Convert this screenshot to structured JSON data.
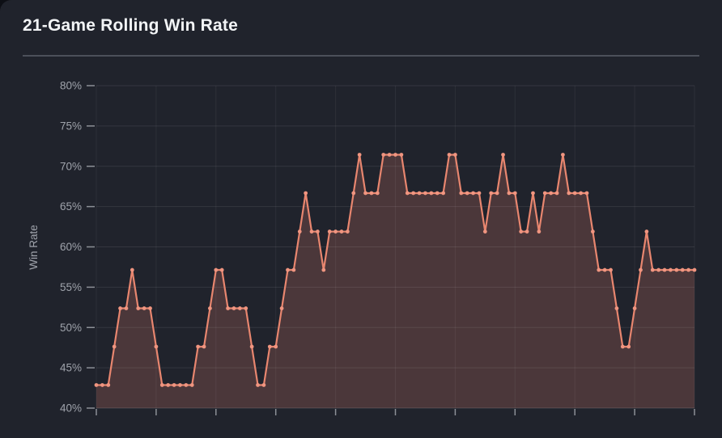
{
  "page": {
    "title": "21-Game Rolling Win Rate"
  },
  "chart_data": {
    "type": "line",
    "title": "21-Game Rolling Win Rate",
    "xlabel": "",
    "ylabel": "Win Rate",
    "ylim": [
      40,
      80
    ],
    "y_tick_labels": [
      "80%",
      "75%",
      "70%",
      "65%",
      "60%",
      "55%",
      "50%",
      "45%",
      "40%"
    ],
    "y_tick_step_percent": 5,
    "x_tick_labels_visible": false,
    "x_gridline_count": 11,
    "grid": true,
    "legend_position": "none",
    "unit": "percent",
    "series": [
      {
        "name": "21-Game Rolling Win Rate",
        "marker": "circle",
        "values": [
          42.86,
          42.86,
          42.86,
          47.62,
          52.38,
          52.38,
          57.14,
          52.38,
          52.38,
          52.38,
          47.62,
          42.86,
          42.86,
          42.86,
          42.86,
          42.86,
          42.86,
          47.62,
          47.62,
          52.38,
          57.14,
          57.14,
          52.38,
          52.38,
          52.38,
          52.38,
          47.62,
          42.86,
          42.86,
          47.62,
          47.62,
          52.38,
          57.14,
          57.14,
          61.9,
          66.67,
          61.9,
          61.9,
          57.14,
          61.9,
          61.9,
          61.9,
          61.9,
          66.67,
          71.43,
          66.67,
          66.67,
          66.67,
          71.43,
          71.43,
          71.43,
          71.43,
          66.67,
          66.67,
          66.67,
          66.67,
          66.67,
          66.67,
          66.67,
          71.43,
          71.43,
          66.67,
          66.67,
          66.67,
          66.67,
          61.9,
          66.67,
          66.67,
          71.43,
          66.67,
          66.67,
          61.9,
          61.9,
          66.67,
          61.9,
          66.67,
          66.67,
          66.67,
          71.43,
          66.67,
          66.67,
          66.67,
          66.67,
          61.9,
          57.14,
          57.14,
          57.14,
          52.38,
          47.62,
          47.62,
          52.38,
          57.14,
          61.9,
          57.14,
          57.14,
          57.14,
          57.14,
          57.14,
          57.14,
          57.14,
          57.14
        ]
      }
    ],
    "colors": {
      "line": "#e8866f",
      "marker": "#f09580",
      "area_fill": "rgba(236,134,112,0.21)",
      "card_background": "#20232c",
      "title_text": "#f2f4f6",
      "axis_text": "#9fa3ab",
      "gridline_horizontal": "rgba(255,255,255,0.09)",
      "gridline_vertical": "rgba(255,255,255,0.06)",
      "axis_line": "rgba(255,255,255,0.14)",
      "tick_mark": "#8c9097",
      "divider": "#4c505a"
    }
  }
}
